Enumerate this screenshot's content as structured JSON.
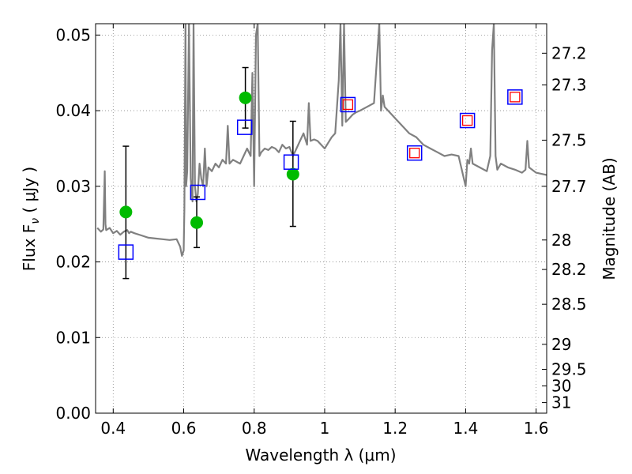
{
  "chart_data": {
    "type": "scatter",
    "xlabel": "Wavelength  λ (μm)",
    "ylabel": "Flux  F",
    "ylabel_subscript": "ν",
    "ylabel_unit": " ( μJy )",
    "y2label": "Magnitude (AB)",
    "xlim": [
      0.35,
      1.63
    ],
    "ylim": [
      0.0,
      0.0515
    ],
    "grid": true,
    "x_ticks": [
      0.4,
      0.6,
      0.8,
      1.0,
      1.2,
      1.4,
      1.6
    ],
    "x_tick_labels": [
      "0.4",
      "0.6",
      "0.8",
      "1",
      "1.2",
      "1.4",
      "1.6"
    ],
    "y_ticks": [
      0.0,
      0.01,
      0.02,
      0.03,
      0.04,
      0.05
    ],
    "y_tick_labels": [
      "0.00",
      "0.01",
      "0.02",
      "0.03",
      "0.04",
      "0.05"
    ],
    "y2_ticks": [
      {
        "flux": 0.0476,
        "label": "27.2"
      },
      {
        "flux": 0.0434,
        "label": "27.3"
      },
      {
        "flux": 0.0361,
        "label": "27.5"
      },
      {
        "flux": 0.03,
        "label": "27.7"
      },
      {
        "flux": 0.0229,
        "label": "28"
      },
      {
        "flux": 0.019,
        "label": "28.2"
      },
      {
        "flux": 0.0144,
        "label": "28.5"
      },
      {
        "flux": 0.0091,
        "label": "29"
      },
      {
        "flux": 0.0058,
        "label": "29.5"
      },
      {
        "flux": 0.0036,
        "label": "30"
      },
      {
        "flux": 0.0014,
        "label": "31"
      }
    ],
    "colors": {
      "spectrum": "#808080",
      "observed": "#00bb00",
      "model_blue": "#0000ff",
      "model_red": "#ff0000",
      "errorbar": "#000000",
      "grid": "#888888"
    },
    "spectrum": {
      "x": [
        0.355,
        0.365,
        0.372,
        0.376,
        0.378,
        0.38,
        0.39,
        0.4,
        0.41,
        0.42,
        0.43,
        0.44,
        0.445,
        0.45,
        0.46,
        0.48,
        0.5,
        0.52,
        0.54,
        0.56,
        0.58,
        0.59,
        0.595,
        0.6,
        0.602,
        0.605,
        0.607,
        0.61,
        0.615,
        0.62,
        0.625,
        0.628,
        0.632,
        0.636,
        0.64,
        0.645,
        0.65,
        0.655,
        0.66,
        0.665,
        0.67,
        0.68,
        0.69,
        0.7,
        0.71,
        0.72,
        0.725,
        0.73,
        0.74,
        0.76,
        0.78,
        0.79,
        0.795,
        0.8,
        0.805,
        0.81,
        0.815,
        0.82,
        0.83,
        0.84,
        0.85,
        0.86,
        0.87,
        0.88,
        0.89,
        0.9,
        0.91,
        0.92,
        0.93,
        0.94,
        0.95,
        0.955,
        0.96,
        0.97,
        0.98,
        1.0,
        1.02,
        1.03,
        1.04,
        1.045,
        1.05,
        1.055,
        1.06,
        1.07,
        1.08,
        1.09,
        1.1,
        1.12,
        1.14,
        1.155,
        1.16,
        1.165,
        1.17,
        1.18,
        1.19,
        1.2,
        1.22,
        1.24,
        1.26,
        1.28,
        1.3,
        1.32,
        1.34,
        1.36,
        1.38,
        1.4,
        1.405,
        1.41,
        1.415,
        1.42,
        1.44,
        1.46,
        1.47,
        1.475,
        1.48,
        1.485,
        1.49,
        1.5,
        1.52,
        1.54,
        1.56,
        1.57,
        1.575,
        1.58,
        1.6,
        1.63
      ],
      "y": [
        0.0245,
        0.024,
        0.0243,
        0.032,
        0.025,
        0.0242,
        0.0245,
        0.0238,
        0.0241,
        0.0236,
        0.024,
        0.0242,
        0.0238,
        0.024,
        0.0238,
        0.0235,
        0.0232,
        0.0231,
        0.023,
        0.0229,
        0.023,
        0.022,
        0.0208,
        0.0215,
        0.027,
        0.0515,
        0.03,
        0.032,
        0.0515,
        0.031,
        0.028,
        0.0515,
        0.03,
        0.028,
        0.029,
        0.033,
        0.031,
        0.03,
        0.035,
        0.03,
        0.0325,
        0.032,
        0.033,
        0.0325,
        0.0335,
        0.033,
        0.038,
        0.033,
        0.0335,
        0.033,
        0.035,
        0.034,
        0.045,
        0.03,
        0.05,
        0.0515,
        0.034,
        0.0345,
        0.035,
        0.0348,
        0.0352,
        0.035,
        0.0345,
        0.0355,
        0.035,
        0.0352,
        0.034,
        0.035,
        0.036,
        0.037,
        0.0355,
        0.041,
        0.036,
        0.0362,
        0.036,
        0.035,
        0.0365,
        0.037,
        0.044,
        0.0515,
        0.038,
        0.0515,
        0.0385,
        0.039,
        0.0395,
        0.0398,
        0.04,
        0.0405,
        0.041,
        0.0515,
        0.04,
        0.042,
        0.0405,
        0.04,
        0.0395,
        0.039,
        0.038,
        0.037,
        0.0365,
        0.0355,
        0.035,
        0.0345,
        0.034,
        0.0342,
        0.034,
        0.03,
        0.0335,
        0.033,
        0.035,
        0.033,
        0.0325,
        0.032,
        0.034,
        0.048,
        0.0515,
        0.034,
        0.0322,
        0.033,
        0.0325,
        0.0322,
        0.0318,
        0.0322,
        0.036,
        0.0325,
        0.0318,
        0.0315
      ]
    },
    "observed_points": [
      {
        "x": 0.436,
        "y": 0.0266,
        "yerr_low": 0.0178,
        "yerr_high": 0.0353
      },
      {
        "x": 0.637,
        "y": 0.0252,
        "yerr_low": 0.0219,
        "yerr_high": 0.0286
      },
      {
        "x": 0.775,
        "y": 0.0417,
        "yerr_low": 0.0377,
        "yerr_high": 0.0457
      },
      {
        "x": 0.91,
        "y": 0.0316,
        "yerr_low": 0.0247,
        "yerr_high": 0.0386
      }
    ],
    "model_squares_blue": [
      {
        "x": 0.436,
        "y": 0.0213
      },
      {
        "x": 0.64,
        "y": 0.0292
      },
      {
        "x": 0.773,
        "y": 0.0378
      },
      {
        "x": 0.905,
        "y": 0.0332
      },
      {
        "x": 1.066,
        "y": 0.0408
      },
      {
        "x": 1.255,
        "y": 0.0344
      },
      {
        "x": 1.405,
        "y": 0.0387
      },
      {
        "x": 1.54,
        "y": 0.0418
      }
    ],
    "model_squares_red": [
      {
        "x": 1.066,
        "y": 0.0408
      },
      {
        "x": 1.255,
        "y": 0.0344
      },
      {
        "x": 1.405,
        "y": 0.0387
      },
      {
        "x": 1.54,
        "y": 0.0418
      }
    ]
  }
}
